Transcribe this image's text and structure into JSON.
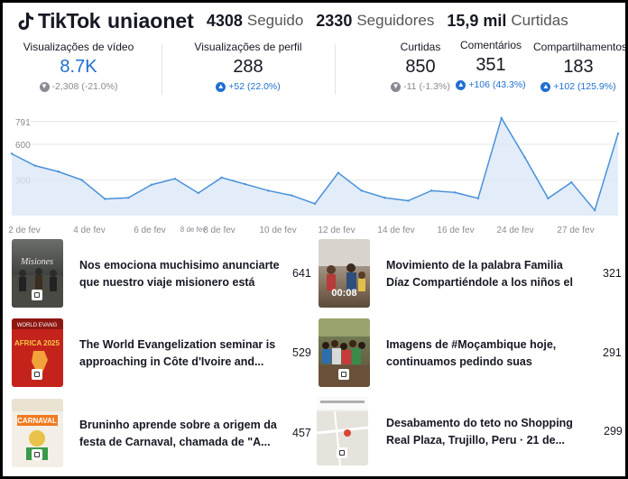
{
  "header": {
    "logo_text": "TikTok",
    "handle": "uniaonet",
    "stats": [
      {
        "value": "4308",
        "label": "Seguido"
      },
      {
        "value": "2330",
        "label": "Seguidores"
      },
      {
        "value": "15,9 mil",
        "label": "Curtidas"
      }
    ]
  },
  "metrics": [
    {
      "label": "Visualizações de vídeo",
      "value": "8.7K",
      "change": "-2,308 (-21.0%)",
      "trend": "down",
      "highlight": true
    },
    {
      "label": "Visualizações de perfil",
      "value": "288",
      "change": "+52 (22.0%)",
      "trend": "up",
      "highlight": false
    },
    {
      "label": "Curtidas",
      "value": "850",
      "change": "-11 (-1.3%)",
      "trend": "down",
      "highlight": false
    },
    {
      "label": "Comentários",
      "value": "351",
      "change": "+106 (43.3%)",
      "trend": "up",
      "highlight": false
    },
    {
      "label": "Compartilhamentos",
      "value": "183",
      "change": "+102 (125.9%)",
      "trend": "up",
      "highlight": false
    }
  ],
  "chart_data": {
    "type": "area",
    "title": "",
    "xlabel": "",
    "ylabel": "",
    "y_ticks": [
      300,
      600,
      791
    ],
    "ylim": [
      0,
      850
    ],
    "x_labels": [
      "2 de fev",
      "4 de fev",
      "6 de fev",
      "8 de fev",
      "8 de fev",
      "10 de fev",
      "12 de fev",
      "14 de fev",
      "16 de fev",
      "24 de fev",
      "27 de fev"
    ],
    "series": [
      {
        "values": [
          520,
          420,
          370,
          300,
          140,
          150,
          260,
          310,
          190,
          320,
          265,
          210,
          170,
          100,
          360,
          210,
          150,
          125,
          210,
          195,
          145,
          820,
          490,
          145,
          280,
          45,
          690
        ]
      }
    ],
    "colors": {
      "line": "#4a90d9",
      "fill": "#dbe9f8",
      "grid": "#e6e6e6",
      "axis_text": "#8a8b91"
    }
  },
  "videos": [
    {
      "title": "Nos emociona muchisimo anunciarte que nuestro viaje misionero está cerca. Si...",
      "views": "641",
      "duration": "",
      "thumb": "mission"
    },
    {
      "title": "Movimiento de la palabra Familia Díaz Compartiéndole a los niños el pacto ...",
      "views": "321",
      "duration": "00:08",
      "thumb": "family"
    },
    {
      "title": "The World Evangelization seminar is approaching in Côte d'Ivoire and...",
      "views": "529",
      "duration": "",
      "thumb": "africa"
    },
    {
      "title": "Imagens de #Moçambique hoje, continuamos pedindo suas orações....",
      "views": "291",
      "duration": "",
      "thumb": "crowd"
    },
    {
      "title": "Bruninho aprende sobre a origem da festa de Carnaval, chamada de \"A...",
      "views": "457",
      "duration": "",
      "thumb": "carnaval"
    },
    {
      "title": "Desabamento do teto no Shopping Real Plaza, Trujillo, Peru · 21 de...",
      "views": "299",
      "duration": "",
      "thumb": "map"
    }
  ]
}
